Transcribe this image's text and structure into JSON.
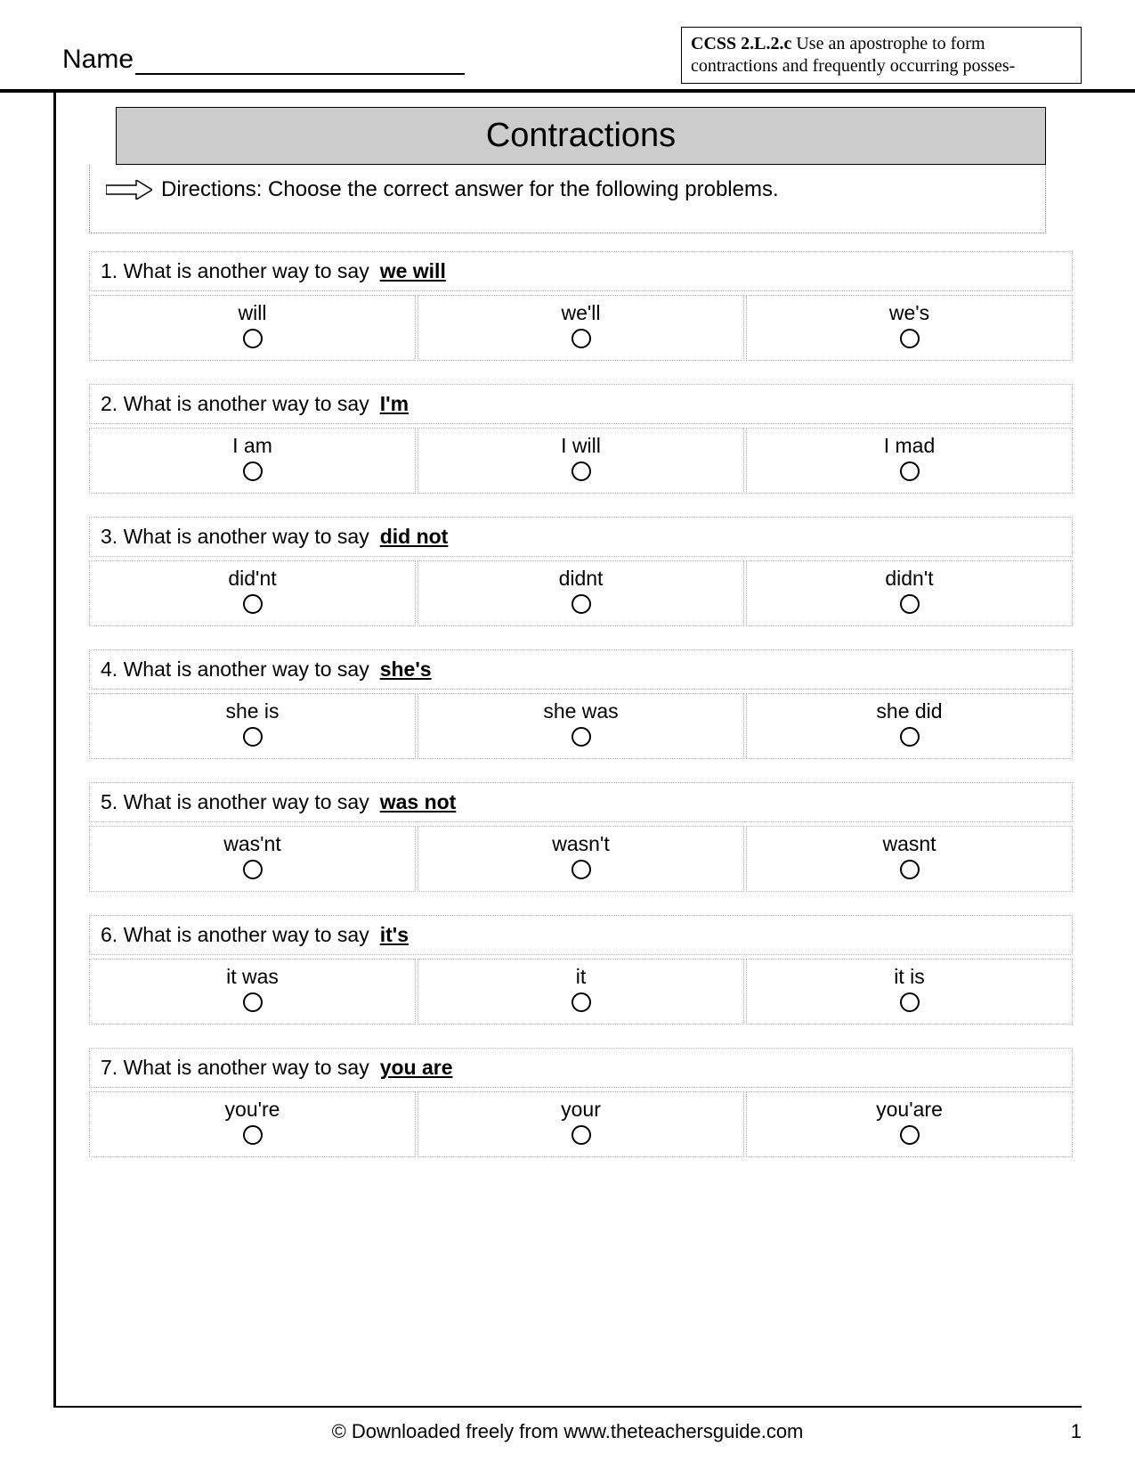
{
  "header": {
    "name_label": "Name",
    "standards_code": "CCSS 2.L.2.c",
    "standards_text": " Use an apostrophe to form contractions and frequently occurring posses-"
  },
  "title": "Contractions",
  "directions": "Directions: Choose the correct answer for the following problems.",
  "question_stem": "What is another way to say",
  "questions": [
    {
      "num": "1.",
      "term": "we will",
      "options": [
        "will",
        "we'll",
        "we's"
      ]
    },
    {
      "num": "2.",
      "term": "I'm",
      "options": [
        "I am",
        "I will",
        "I mad"
      ]
    },
    {
      "num": "3.",
      "term": "did not",
      "options": [
        "did'nt",
        "didnt",
        "didn't"
      ]
    },
    {
      "num": "4.",
      "term": "she's",
      "options": [
        "she is",
        "she was",
        "she did"
      ]
    },
    {
      "num": "5.",
      "term": "was not",
      "options": [
        "was'nt",
        "wasn't",
        "wasnt"
      ]
    },
    {
      "num": "6.",
      "term": "it's",
      "options": [
        "it was",
        "it",
        "it is"
      ]
    },
    {
      "num": "7.",
      "term": "you are",
      "options": [
        "you're",
        "your",
        "you'are"
      ]
    }
  ],
  "footer": {
    "text": "© Downloaded freely from www.theteachersguide.com",
    "page": "1"
  },
  "colors": {
    "title_bg": "#cccccc",
    "border_dotted": "#b0b0b0",
    "text": "#000000"
  }
}
